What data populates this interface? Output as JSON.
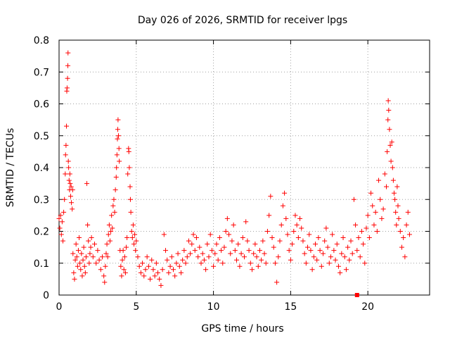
{
  "chart_data": {
    "type": "scatter",
    "title": "Day 026 of 2026, SRMTID for receiver lpgs",
    "xlabel": "GPS time / hours",
    "ylabel": "SRMTID / TECUs",
    "xlim": [
      0,
      24
    ],
    "ylim": [
      0,
      0.8
    ],
    "xticks": [
      0,
      5,
      10,
      15,
      20
    ],
    "xtick_labels": [
      "0",
      "5",
      "10",
      "15",
      "20"
    ],
    "yticks": [
      0,
      0.1,
      0.2,
      0.3,
      0.4,
      0.5,
      0.6,
      0.7,
      0.8
    ],
    "ytick_labels": [
      "0",
      "0.1",
      "0.2",
      "0.3",
      "0.4",
      "0.5",
      "0.6",
      "0.7",
      "0.8"
    ],
    "grid": true,
    "marker": "+",
    "color": "#ff0000",
    "series": [
      {
        "name": "SRMTID",
        "points": [
          [
            0.0,
            0.24
          ],
          [
            0.05,
            0.21
          ],
          [
            0.1,
            0.25
          ],
          [
            0.15,
            0.19
          ],
          [
            0.2,
            0.23
          ],
          [
            0.25,
            0.17
          ],
          [
            0.3,
            0.26
          ],
          [
            0.35,
            0.3
          ],
          [
            0.4,
            0.38
          ],
          [
            0.42,
            0.44
          ],
          [
            0.45,
            0.47
          ],
          [
            0.48,
            0.53
          ],
          [
            0.5,
            0.64
          ],
          [
            0.52,
            0.65
          ],
          [
            0.55,
            0.68
          ],
          [
            0.57,
            0.72
          ],
          [
            0.58,
            0.76
          ],
          [
            0.6,
            0.42
          ],
          [
            0.62,
            0.4
          ],
          [
            0.65,
            0.36
          ],
          [
            0.68,
            0.33
          ],
          [
            0.7,
            0.38
          ],
          [
            0.72,
            0.35
          ],
          [
            0.75,
            0.31
          ],
          [
            0.78,
            0.34
          ],
          [
            0.8,
            0.29
          ],
          [
            0.85,
            0.27
          ],
          [
            0.88,
            0.33
          ],
          [
            0.9,
            0.13
          ],
          [
            0.95,
            0.07
          ],
          [
            1.0,
            0.05
          ],
          [
            1.05,
            0.11
          ],
          [
            1.1,
            0.16
          ],
          [
            1.15,
            0.12
          ],
          [
            1.2,
            0.09
          ],
          [
            1.25,
            0.14
          ],
          [
            1.3,
            0.18
          ],
          [
            1.35,
            0.1
          ],
          [
            1.4,
            0.08
          ],
          [
            1.45,
            0.13
          ],
          [
            1.5,
            0.06
          ],
          [
            1.55,
            0.11
          ],
          [
            1.6,
            0.15
          ],
          [
            1.65,
            0.09
          ],
          [
            1.7,
            0.07
          ],
          [
            1.75,
            0.12
          ],
          [
            1.8,
            0.35
          ],
          [
            1.85,
            0.22
          ],
          [
            1.9,
            0.17
          ],
          [
            1.95,
            0.1
          ],
          [
            2.0,
            0.13
          ],
          [
            2.05,
            0.15
          ],
          [
            2.1,
            0.18
          ],
          [
            2.2,
            0.12
          ],
          [
            2.3,
            0.16
          ],
          [
            2.4,
            0.1
          ],
          [
            2.5,
            0.14
          ],
          [
            2.6,
            0.11
          ],
          [
            2.7,
            0.08
          ],
          [
            2.8,
            0.12
          ],
          [
            2.9,
            0.06
          ],
          [
            2.95,
            0.04
          ],
          [
            3.0,
            0.09
          ],
          [
            3.05,
            0.13
          ],
          [
            3.1,
            0.16
          ],
          [
            3.15,
            0.12
          ],
          [
            3.2,
            0.19
          ],
          [
            3.25,
            0.22
          ],
          [
            3.3,
            0.17
          ],
          [
            3.35,
            0.2
          ],
          [
            3.4,
            0.25
          ],
          [
            3.45,
            0.21
          ],
          [
            3.5,
            0.28
          ],
          [
            3.55,
            0.3
          ],
          [
            3.6,
            0.26
          ],
          [
            3.65,
            0.33
          ],
          [
            3.7,
            0.37
          ],
          [
            3.72,
            0.4
          ],
          [
            3.75,
            0.44
          ],
          [
            3.78,
            0.49
          ],
          [
            3.8,
            0.52
          ],
          [
            3.82,
            0.55
          ],
          [
            3.85,
            0.5
          ],
          [
            3.88,
            0.46
          ],
          [
            3.9,
            0.42
          ],
          [
            3.95,
            0.14
          ],
          [
            4.0,
            0.09
          ],
          [
            4.05,
            0.06
          ],
          [
            4.1,
            0.11
          ],
          [
            4.15,
            0.14
          ],
          [
            4.2,
            0.08
          ],
          [
            4.25,
            0.12
          ],
          [
            4.3,
            0.07
          ],
          [
            4.35,
            0.15
          ],
          [
            4.4,
            0.18
          ],
          [
            4.45,
            0.38
          ],
          [
            4.5,
            0.46
          ],
          [
            4.52,
            0.45
          ],
          [
            4.55,
            0.4
          ],
          [
            4.6,
            0.34
          ],
          [
            4.62,
            0.3
          ],
          [
            4.65,
            0.26
          ],
          [
            4.7,
            0.2
          ],
          [
            4.75,
            0.18
          ],
          [
            4.8,
            0.22
          ],
          [
            4.85,
            0.16
          ],
          [
            4.9,
            0.19
          ],
          [
            4.95,
            0.14
          ],
          [
            5.0,
            0.17
          ],
          [
            5.1,
            0.12
          ],
          [
            5.2,
            0.09
          ],
          [
            5.3,
            0.07
          ],
          [
            5.4,
            0.1
          ],
          [
            5.5,
            0.06
          ],
          [
            5.6,
            0.08
          ],
          [
            5.7,
            0.12
          ],
          [
            5.8,
            0.09
          ],
          [
            5.9,
            0.05
          ],
          [
            6.0,
            0.11
          ],
          [
            6.1,
            0.08
          ],
          [
            6.2,
            0.06
          ],
          [
            6.3,
            0.1
          ],
          [
            6.4,
            0.07
          ],
          [
            6.5,
            0.05
          ],
          [
            6.6,
            0.03
          ],
          [
            6.7,
            0.08
          ],
          [
            6.8,
            0.19
          ],
          [
            6.9,
            0.14
          ],
          [
            7.0,
            0.11
          ],
          [
            7.1,
            0.07
          ],
          [
            7.2,
            0.09
          ],
          [
            7.3,
            0.12
          ],
          [
            7.4,
            0.08
          ],
          [
            7.5,
            0.06
          ],
          [
            7.6,
            0.1
          ],
          [
            7.7,
            0.13
          ],
          [
            7.8,
            0.09
          ],
          [
            7.9,
            0.07
          ],
          [
            8.0,
            0.11
          ],
          [
            8.1,
            0.14
          ],
          [
            8.2,
            0.1
          ],
          [
            8.3,
            0.12
          ],
          [
            8.4,
            0.17
          ],
          [
            8.5,
            0.13
          ],
          [
            8.6,
            0.16
          ],
          [
            8.7,
            0.19
          ],
          [
            8.8,
            0.14
          ],
          [
            8.9,
            0.18
          ],
          [
            9.0,
            0.12
          ],
          [
            9.1,
            0.15
          ],
          [
            9.2,
            0.1
          ],
          [
            9.3,
            0.13
          ],
          [
            9.4,
            0.11
          ],
          [
            9.5,
            0.08
          ],
          [
            9.6,
            0.16
          ],
          [
            9.7,
            0.12
          ],
          [
            9.8,
            0.19
          ],
          [
            9.9,
            0.14
          ],
          [
            10.0,
            0.09
          ],
          [
            10.1,
            0.13
          ],
          [
            10.2,
            0.16
          ],
          [
            10.3,
            0.11
          ],
          [
            10.4,
            0.18
          ],
          [
            10.5,
            0.14
          ],
          [
            10.6,
            0.1
          ],
          [
            10.7,
            0.15
          ],
          [
            10.8,
            0.2
          ],
          [
            10.9,
            0.24
          ],
          [
            11.0,
            0.19
          ],
          [
            11.1,
            0.13
          ],
          [
            11.2,
            0.17
          ],
          [
            11.3,
            0.22
          ],
          [
            11.4,
            0.14
          ],
          [
            11.5,
            0.11
          ],
          [
            11.6,
            0.16
          ],
          [
            11.7,
            0.09
          ],
          [
            11.8,
            0.13
          ],
          [
            11.9,
            0.18
          ],
          [
            12.0,
            0.12
          ],
          [
            12.1,
            0.23
          ],
          [
            12.2,
            0.17
          ],
          [
            12.3,
            0.14
          ],
          [
            12.4,
            0.1
          ],
          [
            12.5,
            0.08
          ],
          [
            12.6,
            0.13
          ],
          [
            12.7,
            0.16
          ],
          [
            12.8,
            0.12
          ],
          [
            12.9,
            0.09
          ],
          [
            13.0,
            0.14
          ],
          [
            13.1,
            0.11
          ],
          [
            13.2,
            0.17
          ],
          [
            13.3,
            0.13
          ],
          [
            13.4,
            0.1
          ],
          [
            13.5,
            0.2
          ],
          [
            13.6,
            0.25
          ],
          [
            13.7,
            0.31
          ],
          [
            13.8,
            0.18
          ],
          [
            13.9,
            0.15
          ],
          [
            14.0,
            0.1
          ],
          [
            14.1,
            0.04
          ],
          [
            14.2,
            0.12
          ],
          [
            14.3,
            0.17
          ],
          [
            14.4,
            0.22
          ],
          [
            14.5,
            0.28
          ],
          [
            14.6,
            0.32
          ],
          [
            14.7,
            0.24
          ],
          [
            14.8,
            0.19
          ],
          [
            14.9,
            0.14
          ],
          [
            15.0,
            0.11
          ],
          [
            15.1,
            0.16
          ],
          [
            15.2,
            0.2
          ],
          [
            15.3,
            0.25
          ],
          [
            15.4,
            0.22
          ],
          [
            15.5,
            0.18
          ],
          [
            15.6,
            0.24
          ],
          [
            15.7,
            0.21
          ],
          [
            15.8,
            0.17
          ],
          [
            15.9,
            0.13
          ],
          [
            16.0,
            0.1
          ],
          [
            16.1,
            0.15
          ],
          [
            16.2,
            0.19
          ],
          [
            16.3,
            0.14
          ],
          [
            16.4,
            0.08
          ],
          [
            16.5,
            0.12
          ],
          [
            16.6,
            0.16
          ],
          [
            16.7,
            0.11
          ],
          [
            16.8,
            0.18
          ],
          [
            16.9,
            0.14
          ],
          [
            17.0,
            0.09
          ],
          [
            17.1,
            0.13
          ],
          [
            17.2,
            0.17
          ],
          [
            17.3,
            0.21
          ],
          [
            17.4,
            0.15
          ],
          [
            17.5,
            0.1
          ],
          [
            17.6,
            0.12
          ],
          [
            17.7,
            0.19
          ],
          [
            17.8,
            0.14
          ],
          [
            17.9,
            0.11
          ],
          [
            18.0,
            0.16
          ],
          [
            18.1,
            0.09
          ],
          [
            18.2,
            0.07
          ],
          [
            18.3,
            0.13
          ],
          [
            18.4,
            0.18
          ],
          [
            18.5,
            0.12
          ],
          [
            18.6,
            0.08
          ],
          [
            18.7,
            0.15
          ],
          [
            18.8,
            0.11
          ],
          [
            18.9,
            0.17
          ],
          [
            19.0,
            0.13
          ],
          [
            19.1,
            0.3
          ],
          [
            19.2,
            0.22
          ],
          [
            19.3,
            0.14
          ],
          [
            19.4,
            0.18
          ],
          [
            19.5,
            0.12
          ],
          [
            19.6,
            0.2
          ],
          [
            19.7,
            0.16
          ],
          [
            19.8,
            0.1
          ],
          [
            19.9,
            0.21
          ],
          [
            20.0,
            0.25
          ],
          [
            20.1,
            0.18
          ],
          [
            20.2,
            0.32
          ],
          [
            20.3,
            0.28
          ],
          [
            20.4,
            0.22
          ],
          [
            20.5,
            0.26
          ],
          [
            20.6,
            0.2
          ],
          [
            20.7,
            0.36
          ],
          [
            20.8,
            0.3
          ],
          [
            20.9,
            0.24
          ],
          [
            21.0,
            0.27
          ],
          [
            21.1,
            0.38
          ],
          [
            21.2,
            0.34
          ],
          [
            21.25,
            0.45
          ],
          [
            21.3,
            0.55
          ],
          [
            21.32,
            0.61
          ],
          [
            21.35,
            0.58
          ],
          [
            21.4,
            0.52
          ],
          [
            21.45,
            0.47
          ],
          [
            21.5,
            0.42
          ],
          [
            21.55,
            0.48
          ],
          [
            21.6,
            0.4
          ],
          [
            21.65,
            0.36
          ],
          [
            21.7,
            0.32
          ],
          [
            21.75,
            0.3
          ],
          [
            21.8,
            0.26
          ],
          [
            21.85,
            0.22
          ],
          [
            21.9,
            0.34
          ],
          [
            21.95,
            0.28
          ],
          [
            22.0,
            0.24
          ],
          [
            22.1,
            0.2
          ],
          [
            22.2,
            0.15
          ],
          [
            22.3,
            0.18
          ],
          [
            22.4,
            0.12
          ],
          [
            22.5,
            0.22
          ],
          [
            22.6,
            0.26
          ],
          [
            22.7,
            0.19
          ]
        ]
      }
    ],
    "isolated_marker": [
      19.3,
      0.0
    ]
  }
}
